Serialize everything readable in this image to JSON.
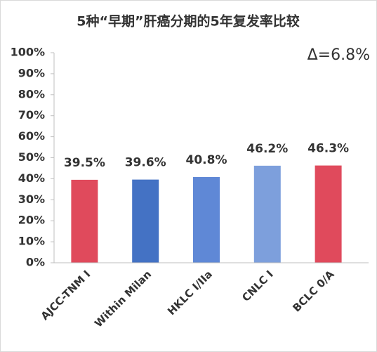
{
  "chart_data": {
    "type": "bar",
    "title": "5种“早期”肝癌分期的5年复发率比较",
    "annotation": "Δ=6.8%",
    "categories": [
      "AJCC-TNM I",
      "Within Milan",
      "HKLC I/IIa",
      "CNLC I",
      "BCLC 0/A"
    ],
    "values": [
      39.5,
      39.6,
      40.8,
      46.2,
      46.3
    ],
    "value_labels": [
      "39.5%",
      "39.6%",
      "40.8%",
      "46.2%",
      "46.3%"
    ],
    "colors": [
      "#e04a5c",
      "#4472c4",
      "#5f88d6",
      "#7d9fdc",
      "#e04a5c"
    ],
    "ylim": [
      0,
      100
    ],
    "yticks": [
      {
        "value": 0,
        "label": "0%"
      },
      {
        "value": 10,
        "label": "10%"
      },
      {
        "value": 20,
        "label": "20%"
      },
      {
        "value": 30,
        "label": "30%"
      },
      {
        "value": 40,
        "label": "40%"
      },
      {
        "value": 50,
        "label": "50%"
      },
      {
        "value": 60,
        "label": "60%"
      },
      {
        "value": 70,
        "label": "70%"
      },
      {
        "value": 80,
        "label": "80%"
      },
      {
        "value": 90,
        "label": "90%"
      },
      {
        "value": 100,
        "label": "100%"
      }
    ],
    "grid": false
  }
}
